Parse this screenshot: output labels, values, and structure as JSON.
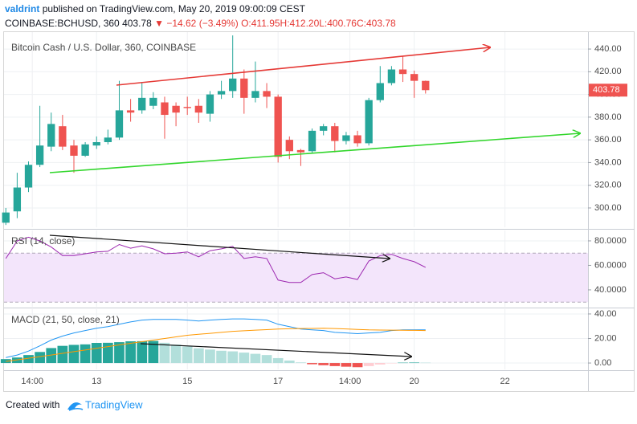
{
  "header": {
    "author": "valdrint",
    "published": "published on TradingView.com, May 20, 2019 09:00:09 CEST",
    "symbol": "COINBASE:BCHUSD, 360",
    "last": "403.78",
    "change": "▼ −14.62 (−3.49%)",
    "ohlc": [
      "O:411.95",
      "H:412.20",
      "L:400.76",
      "C:403.78"
    ]
  },
  "footer": {
    "created": "Created with",
    "brand": "TradingView"
  },
  "chart_data": [
    {
      "type": "candlestick",
      "title": "Bitcoin Cash / U.S. Dollar, 360, COINBASE",
      "x": [
        11,
        11.25,
        11.5,
        11.75,
        12,
        12.25,
        12.5,
        12.75,
        13,
        13.25,
        13.5,
        13.75,
        14,
        14.25,
        14.5,
        14.75,
        15,
        15.25,
        15.5,
        15.75,
        16,
        16.25,
        16.5,
        16.75,
        17,
        17.25,
        17.5,
        17.75,
        18,
        18.25,
        18.5,
        18.75,
        19,
        19.25,
        19.5,
        19.75,
        20,
        20.25
      ],
      "open": [
        287,
        297,
        318,
        338,
        354,
        372,
        355,
        346,
        355,
        358,
        362,
        386,
        386,
        390,
        393,
        390,
        389,
        390,
        383,
        400,
        403,
        414,
        397,
        403,
        398,
        360,
        351,
        350,
        368,
        372,
        359,
        364,
        357,
        395,
        410,
        422,
        418,
        411.95
      ],
      "high": [
        300,
        331,
        341,
        390,
        384,
        382,
        360,
        358,
        363,
        369,
        412,
        396,
        410,
        402,
        398,
        393,
        398,
        396,
        403,
        412,
        452,
        422,
        429,
        410,
        400,
        363,
        352,
        370,
        374,
        375,
        367,
        368,
        397,
        425,
        425,
        434,
        421,
        412.2
      ],
      "low": [
        285,
        291,
        314,
        336,
        350,
        351,
        331,
        345,
        352,
        356,
        360,
        376,
        383,
        387,
        361,
        372,
        382,
        375,
        376,
        396,
        397,
        383,
        393,
        388,
        340,
        343,
        337,
        348,
        364,
        349,
        356,
        354,
        355,
        393,
        408,
        411,
        397,
        400.76
      ],
      "close": [
        296,
        318,
        338,
        355,
        374,
        354,
        346,
        356,
        358,
        362,
        386,
        384,
        397,
        397,
        382,
        384,
        388,
        384,
        400,
        403,
        414,
        397,
        403,
        398,
        345,
        350,
        349,
        368,
        372,
        359,
        364,
        357,
        395,
        410,
        422,
        418,
        412,
        403.78
      ],
      "up_color": "#26a69a",
      "down_color": "#ef5350",
      "last_price_label": "403.78",
      "xlim": [
        10.96,
        23.83
      ],
      "xticks": [
        {
          "value": 11.583,
          "label": "14:00"
        },
        13,
        15,
        17,
        {
          "value": 18.583,
          "label": "14:00"
        },
        20,
        22
      ],
      "ylim": [
        283,
        454.9
      ],
      "yticks": [
        {
          "value": 300,
          "label": "300.00"
        },
        {
          "value": 320,
          "label": "320.00"
        },
        {
          "value": 340,
          "label": "340.00"
        },
        {
          "value": 360,
          "label": "360.00"
        },
        {
          "value": 380,
          "label": "380.00"
        },
        {
          "value": 400,
          "label": "400.00"
        },
        {
          "value": 420,
          "label": "420.00"
        },
        {
          "value": 440,
          "label": "440.00"
        }
      ],
      "grid": true
    },
    {
      "type": "line",
      "title": "RSI (14, close)",
      "values": [
        65.6,
        80,
        83,
        80,
        75,
        68,
        68,
        69.5,
        71,
        71.5,
        77,
        74,
        76,
        73.5,
        69.5,
        70,
        71,
        67,
        72,
        73.5,
        75.5,
        65.6,
        67,
        65.6,
        48,
        46,
        46,
        52.5,
        54,
        49,
        50.5,
        48.5,
        63.6,
        68,
        69,
        65.6,
        63,
        58.4
      ],
      "color": "#9c27b0",
      "band": [
        30,
        70
      ],
      "band_color": "#f3e5fb",
      "ylim": [
        26.2,
        88.5
      ],
      "yticks": [
        {
          "value": 40,
          "label": "40.0000"
        },
        {
          "value": 60,
          "label": "60.0000"
        },
        {
          "value": 80,
          "label": "80.0000"
        }
      ],
      "grid": true
    },
    {
      "type": "macd",
      "title": "MACD (21, 50, close, 21)",
      "macd": [
        4.5,
        6.5,
        9.7,
        14,
        18.7,
        22,
        24.5,
        26.5,
        28.4,
        29.7,
        31.6,
        33.5,
        35,
        35.5,
        35.5,
        35.5,
        35,
        34.2,
        35,
        35.5,
        36,
        36,
        35.5,
        35,
        31.6,
        29.7,
        27.7,
        27,
        26.5,
        25,
        24.5,
        23.9,
        24.5,
        25,
        26.5,
        27,
        27,
        27
      ],
      "signal": [
        1.3,
        2.6,
        3.9,
        5.2,
        6.5,
        7.9,
        9.3,
        10.6,
        12,
        13.4,
        14.8,
        16.1,
        17.4,
        18.7,
        20,
        21.3,
        22.6,
        23.4,
        24.2,
        25,
        25.8,
        26.3,
        26.8,
        27.2,
        27.7,
        27.9,
        28.1,
        28.2,
        28.4,
        28.1,
        27.8,
        27.4,
        27,
        26.9,
        26.8,
        26.7,
        26.6,
        26.5
      ],
      "histogram": [
        3.2,
        4.5,
        6.5,
        9,
        12.2,
        14,
        14.8,
        15.2,
        16.4,
        16.5,
        17,
        17.7,
        17.8,
        18,
        16.5,
        15,
        13.5,
        12,
        11,
        10,
        9.5,
        8.5,
        7.5,
        6.5,
        4,
        2,
        0.5,
        -1,
        -1.8,
        -2.5,
        -3,
        -3.4,
        -2.5,
        -1.2,
        -0.3,
        0.3,
        0.4,
        0.3
      ],
      "macd_color": "#2196f3",
      "signal_color": "#ff9800",
      "histogram_colors": {
        "up_rising": "#26a69a",
        "up_falling": "#b2dfdb",
        "down_falling": "#ef5350",
        "down_rising": "#ffcdd2"
      },
      "ylim": [
        -5.2,
        43.9
      ],
      "yticks": [
        {
          "value": 0,
          "label": "0.00"
        },
        {
          "value": 20,
          "label": "20.00"
        },
        {
          "value": 40,
          "label": "40.00"
        }
      ],
      "grid": true
    }
  ]
}
